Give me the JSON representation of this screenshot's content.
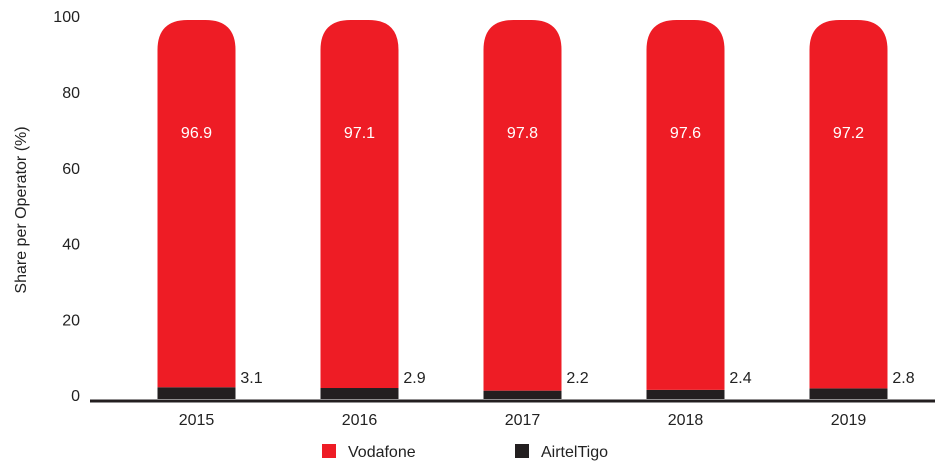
{
  "chart_data": {
    "type": "bar",
    "stacked": true,
    "y_label": "Share per Operator (%)",
    "categories": [
      "2015",
      "2016",
      "2017",
      "2018",
      "2019"
    ],
    "series": [
      {
        "name": "AirtelTigo",
        "color": "#231f20",
        "values": [
          3.1,
          2.9,
          2.2,
          2.4,
          2.8
        ]
      },
      {
        "name": "Vodafone",
        "color": "#ee1c25",
        "values": [
          96.9,
          97.1,
          97.8,
          97.6,
          97.2
        ]
      }
    ],
    "legend_order": [
      1,
      0
    ],
    "ylim": [
      0,
      100
    ],
    "yticks": [
      0,
      20,
      40,
      60,
      80,
      100
    ],
    "grid": false
  }
}
